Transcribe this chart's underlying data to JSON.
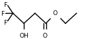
{
  "bg_color": "#ffffff",
  "line_color": "#000000",
  "font_size": 6.5,
  "line_width": 1.0,
  "xlim": [
    0,
    100
  ],
  "ylim": [
    0,
    58
  ],
  "nodes": {
    "x_cf3": 15,
    "x_c3": 28,
    "x_c2": 41,
    "x_c1": 54,
    "x_o": 65,
    "x_ce1": 77,
    "x_ce2": 90,
    "y_high": 20,
    "y_low": 36,
    "y_oh": 7,
    "y_co": 7
  }
}
